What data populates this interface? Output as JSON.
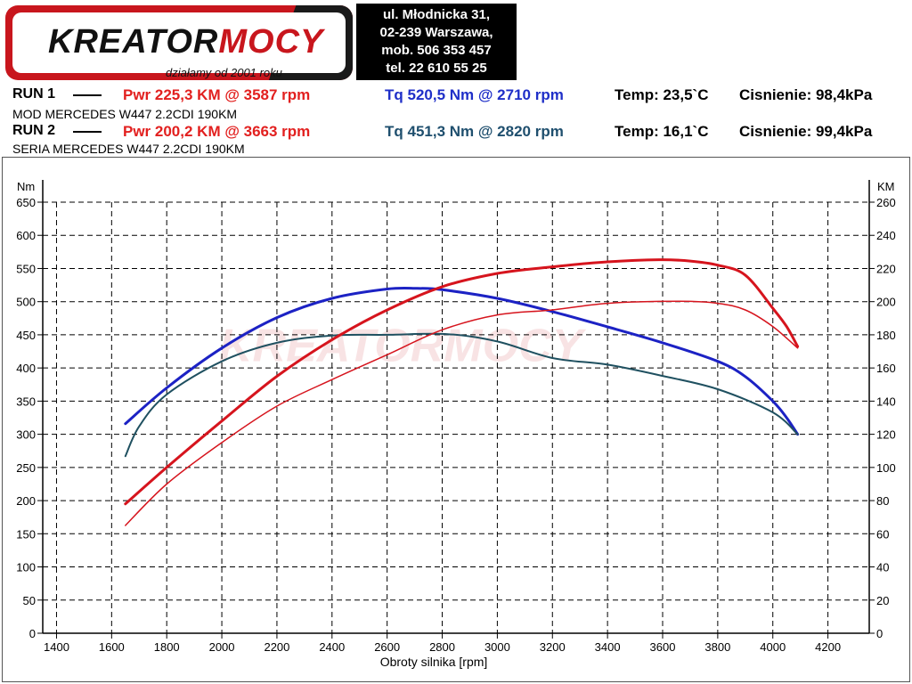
{
  "header": {
    "logo": {
      "brand_a": "KREATOR",
      "brand_b": "MOCY",
      "tagline": "działamy od 2001 roku"
    },
    "address": [
      "ul. Młodnicka 31,",
      "02-239  Warszawa,",
      "mob.  506 353 457",
      "tel.  22 610 55 25"
    ]
  },
  "runs": [
    {
      "label": "RUN 1",
      "pwr": "Pwr  225,3 KM @ 3587 rpm",
      "tq": "Tq 520,5 Nm @ 2710 rpm",
      "temp": "Temp: 23,5`C",
      "pressure": "Cisnienie: 98,4kPa",
      "description": "MOD MERCEDES W447 2.2CDI 190KM",
      "tq_color": "#1f2fc8"
    },
    {
      "label": "RUN 2",
      "pwr": "Pwr  200,2 KM @ 3663 rpm",
      "tq": "Tq 451,3 Nm @ 2820 rpm",
      "temp": "Temp: 16,1`C",
      "pressure": "Cisnienie: 99,4kPa",
      "description": "SERIA MERCEDES W447 2.2CDI 190KM",
      "tq_color": "#1f4f6e"
    }
  ],
  "chart_data": {
    "type": "line",
    "title": "",
    "xlabel": "Obroty silnika [rpm]",
    "ylabel_left": "Nm",
    "ylabel_right": "KM",
    "xlim": [
      1350,
      4350
    ],
    "x_ticks": [
      1400,
      1600,
      1800,
      2000,
      2200,
      2400,
      2600,
      2800,
      3000,
      3200,
      3400,
      3600,
      3800,
      4000,
      4200
    ],
    "ylim_left": [
      0,
      650
    ],
    "y_ticks_left": [
      0,
      50,
      100,
      150,
      200,
      250,
      300,
      350,
      400,
      450,
      500,
      550,
      600,
      650
    ],
    "ylim_right": [
      0,
      260
    ],
    "y_ticks_right": [
      0,
      20,
      40,
      60,
      80,
      100,
      120,
      140,
      160,
      180,
      200,
      220,
      240,
      260
    ],
    "grid": true,
    "watermark": "KREATORMOCY",
    "series": [
      {
        "axis": "left",
        "color": "#1c22c4",
        "width": 3,
        "x": [
          1650,
          1800,
          2000,
          2200,
          2400,
          2600,
          2710,
          2800,
          3000,
          3200,
          3400,
          3600,
          3800,
          3900,
          4000,
          4050,
          4090
        ],
        "y": [
          316,
          370,
          430,
          476,
          505,
          519,
          520,
          518,
          505,
          485,
          462,
          438,
          410,
          387,
          350,
          325,
          300
        ]
      },
      {
        "axis": "left",
        "color": "#1f5060",
        "width": 2,
        "x": [
          1650,
          1700,
          1800,
          2000,
          2200,
          2400,
          2600,
          2820,
          3000,
          3200,
          3400,
          3600,
          3800,
          4000,
          4090
        ],
        "y": [
          267,
          312,
          360,
          410,
          438,
          449,
          450,
          451,
          440,
          415,
          405,
          388,
          368,
          333,
          300
        ]
      },
      {
        "axis": "right",
        "color": "#d6141d",
        "width": 3,
        "x": [
          1650,
          1800,
          2000,
          2200,
          2400,
          2600,
          2800,
          3000,
          3200,
          3400,
          3587,
          3700,
          3800,
          3900,
          4000,
          4050,
          4090
        ],
        "y": [
          78,
          100,
          128,
          155,
          177,
          195,
          209,
          217,
          221,
          224,
          225.3,
          224.5,
          222,
          216,
          196,
          185,
          173
        ]
      },
      {
        "axis": "right",
        "color": "#d6141d",
        "width": 1.5,
        "x": [
          1650,
          1800,
          2000,
          2200,
          2400,
          2600,
          2800,
          3000,
          3200,
          3400,
          3663,
          3800,
          3900,
          4000,
          4090
        ],
        "y": [
          65,
          90,
          115,
          137,
          153,
          168,
          183,
          192,
          195,
          199,
          200.2,
          199,
          195,
          185,
          172
        ]
      }
    ]
  }
}
